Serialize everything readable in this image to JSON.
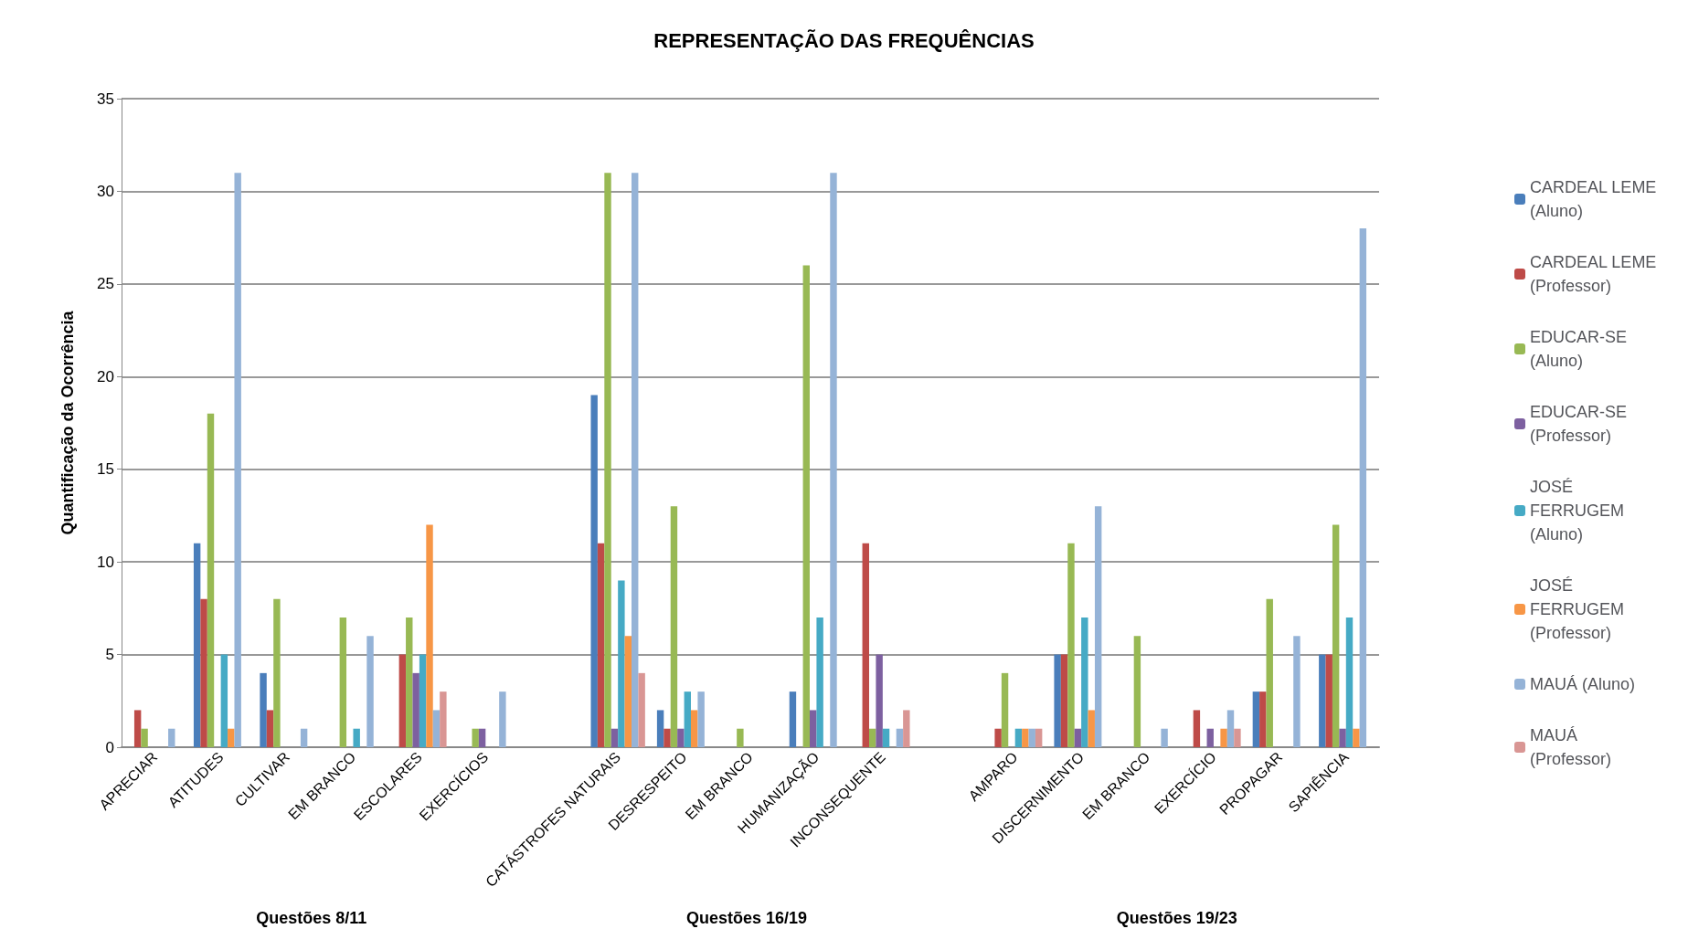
{
  "chart_data": {
    "type": "bar",
    "title": "REPRESENTAÇÃO DAS FREQUÊNCIAS",
    "ylabel": "Quantificação da Ocorrência",
    "categories": [
      "APRECIAR",
      "ATITUDES",
      "CULTIVAR",
      "EM BRANCO",
      "ESCOLARES",
      "EXERCÍCIOS",
      null,
      "CATÁSTROFES NATURAIS",
      "DESRESPEITO",
      "EM BRANCO",
      "HUMANIZAÇÃO",
      "INCONSEQUENTE",
      null,
      "AMPARO",
      "DISCERNIMENTO",
      "EM BRANCO",
      "EXERCÍCIO",
      "PROPAGAR",
      "SAPIÊNCIA"
    ],
    "series": [
      {
        "name": "CARDEAL LEME (Aluno)",
        "color": "#4a7ebb",
        "values": [
          0,
          11,
          4,
          0,
          0,
          0,
          null,
          19,
          2,
          0,
          3,
          0,
          null,
          0,
          5,
          0,
          0,
          3,
          5
        ]
      },
      {
        "name": "CARDEAL LEME (Professor)",
        "color": "#be4b48",
        "values": [
          2,
          8,
          2,
          0,
          5,
          0,
          null,
          11,
          1,
          0,
          0,
          11,
          null,
          1,
          5,
          0,
          2,
          3,
          5
        ]
      },
      {
        "name": "EDUCAR-SE (Aluno)",
        "color": "#98b954",
        "values": [
          1,
          18,
          8,
          7,
          7,
          1,
          null,
          31,
          13,
          1,
          26,
          1,
          null,
          4,
          11,
          6,
          0,
          8,
          12
        ]
      },
      {
        "name": "EDUCAR-SE (Professor)",
        "color": "#7d60a0",
        "values": [
          0,
          0,
          0,
          0,
          4,
          1,
          null,
          1,
          1,
          0,
          2,
          5,
          null,
          0,
          1,
          0,
          1,
          0,
          1
        ]
      },
      {
        "name": "JOSÉ FERRUGEM (Aluno)",
        "color": "#46aac5",
        "values": [
          0,
          5,
          0,
          1,
          5,
          0,
          null,
          9,
          3,
          0,
          7,
          1,
          null,
          1,
          7,
          0,
          0,
          0,
          7
        ]
      },
      {
        "name": "JOSÉ FERRUGEM (Professor)",
        "color": "#f79646",
        "values": [
          0,
          1,
          0,
          0,
          12,
          0,
          null,
          6,
          2,
          0,
          0,
          0,
          null,
          1,
          2,
          0,
          1,
          0,
          1
        ]
      },
      {
        "name": "MAUÁ (Aluno)",
        "color": "#95b3d7",
        "values": [
          1,
          31,
          1,
          6,
          2,
          3,
          null,
          31,
          3,
          0,
          31,
          1,
          null,
          1,
          13,
          1,
          2,
          6,
          28
        ]
      },
      {
        "name": "MAUÁ (Professor)",
        "color": "#d99694",
        "values": [
          0,
          0,
          0,
          0,
          3,
          0,
          null,
          4,
          0,
          0,
          0,
          2,
          null,
          1,
          0,
          0,
          1,
          0,
          0
        ]
      }
    ],
    "ylim": [
      0,
      35
    ],
    "yticks": [
      0,
      5,
      10,
      15,
      20,
      25,
      30,
      35
    ],
    "grid": "y",
    "legend": "right",
    "annotations": [
      "Questões 8/11",
      "Questões 16/19",
      "Questões 19/23"
    ]
  }
}
